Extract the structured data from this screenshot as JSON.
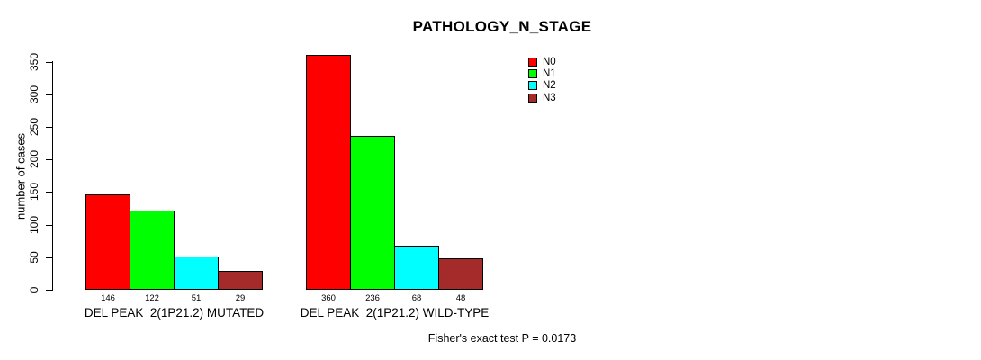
{
  "chart_data": {
    "type": "bar",
    "title": "PATHOLOGY_N_STAGE",
    "ylabel": "number of cases",
    "xlabel": "",
    "ylim": [
      0,
      350
    ],
    "yticks": [
      0,
      50,
      100,
      150,
      200,
      250,
      300,
      350
    ],
    "grid": false,
    "legend_position": "top-right-inside",
    "bar_value_labels_shown": true,
    "categories": [
      "DEL PEAK  2(1P21.2) MUTATED",
      "DEL PEAK  2(1P21.2) WILD-TYPE"
    ],
    "groups": [
      {
        "label": "DEL PEAK  2(1P21.2) MUTATED",
        "values": [
          146,
          122,
          51,
          29
        ]
      },
      {
        "label": "DEL PEAK  2(1P21.2) WILD-TYPE",
        "values": [
          360,
          236,
          68,
          48
        ]
      }
    ],
    "series": [
      {
        "name": "N0",
        "color": "#FF0000",
        "values": [
          146,
          360
        ]
      },
      {
        "name": "N1",
        "color": "#00FF00",
        "values": [
          122,
          236
        ]
      },
      {
        "name": "N2",
        "color": "#00FFFF",
        "values": [
          51,
          68
        ]
      },
      {
        "name": "N3",
        "color": "#A52A2A",
        "values": [
          29,
          48
        ]
      }
    ],
    "footnote": "Fisher's exact test P = 0.0173",
    "colors": {
      "axis": "#000000",
      "text": "#000000",
      "background": "#FFFFFF"
    }
  }
}
